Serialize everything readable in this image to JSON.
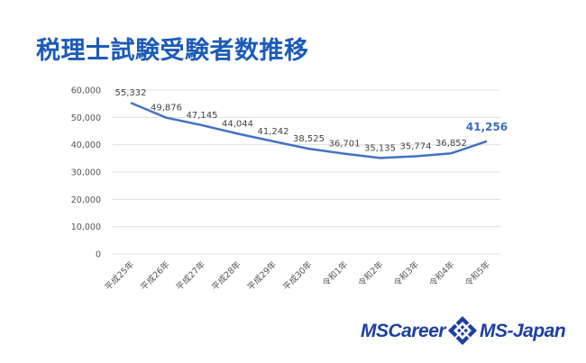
{
  "title": "税理士試験受験者数推移",
  "chart_data": {
    "type": "line",
    "categories": [
      "平成25年",
      "平成26年",
      "平成27年",
      "平成28年",
      "平成29年",
      "平成30年",
      "令和1年",
      "令和2年",
      "令和3年",
      "令和4年",
      "令和5年"
    ],
    "series": [
      {
        "values": [
          55332,
          49876,
          47145,
          44044,
          41242,
          38525,
          36701,
          35135,
          35774,
          36852,
          41256
        ]
      }
    ],
    "data_labels": [
      "55,332",
      "49,876",
      "47,145",
      "44,044",
      "41,242",
      "38,525",
      "36,701",
      "35,135",
      "35,774",
      "36,852",
      "41,256"
    ],
    "highlight_index": 10,
    "ylim": [
      0,
      60000
    ],
    "y_ticks": [
      "0",
      "10,000",
      "20,000",
      "30,000",
      "40,000",
      "50,000",
      "60,000"
    ],
    "grid": true,
    "line_color": "#4472c4",
    "highlight_color": "#3b6cc4"
  },
  "logo": {
    "left_text": "MSCareer",
    "right_text": "MS-Japan",
    "color": "#1c3fa1"
  }
}
